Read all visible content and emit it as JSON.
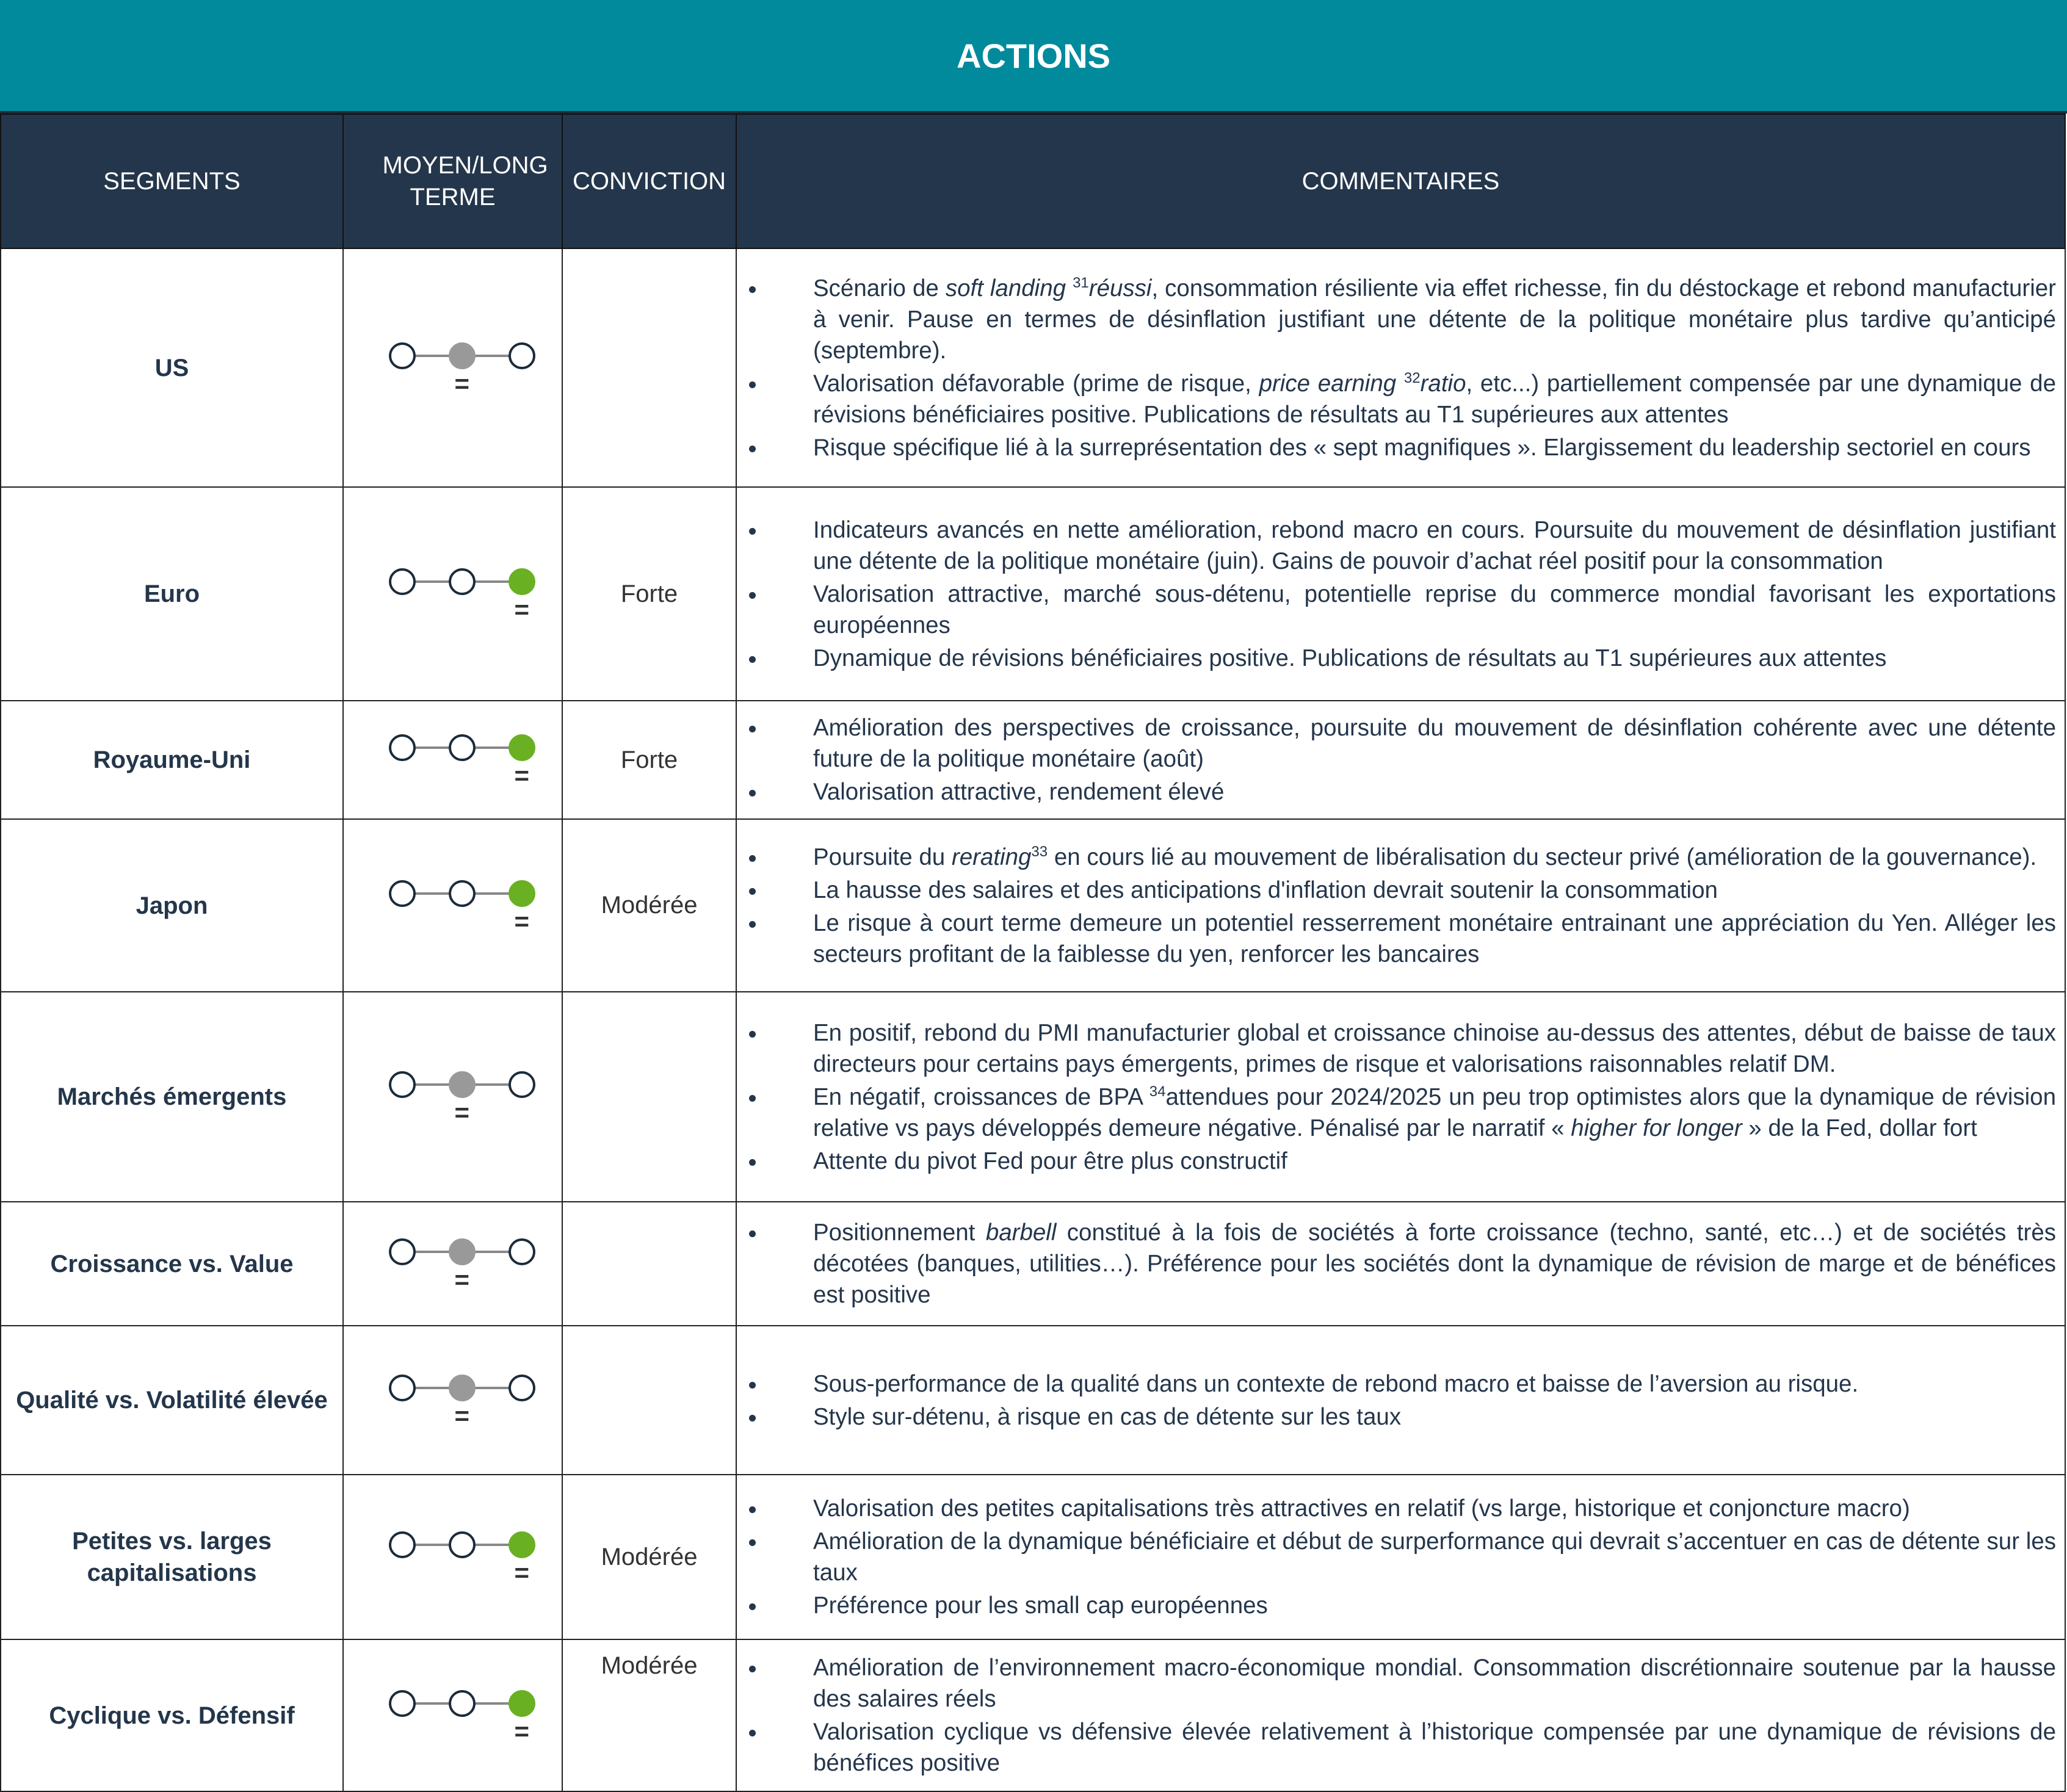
{
  "title": "ACTIONS",
  "headers": {
    "segments": "SEGMENTS",
    "term": "MOYEN/LONG TERME",
    "conviction": "CONVICTION",
    "comments": "COMMENTAIRES"
  },
  "colors": {
    "title_bg": "#008a9c",
    "header_bg": "#24364b",
    "neutral": "#999999",
    "positive": "#6ab023"
  },
  "rows": [
    {
      "segment": "US",
      "level": 2,
      "state": "neutral",
      "trend": "=",
      "conviction": "",
      "comments": [
        [
          {
            "t": "Scénario de "
          },
          {
            "t": "soft landing ",
            "i": true
          },
          {
            "t": "31",
            "sup": true
          },
          {
            "t": "réussi",
            "i": true
          },
          {
            "t": ", consommation résiliente via effet richesse, fin du déstockage et rebond manufacturier à venir. Pause en termes de désinflation justifiant une détente de la politique monétaire plus tardive qu’anticipé (septembre)."
          }
        ],
        [
          {
            "t": "Valorisation défavorable (prime de risque, "
          },
          {
            "t": "price earning ",
            "i": true
          },
          {
            "t": "32",
            "sup": true
          },
          {
            "t": "ratio",
            "i": true
          },
          {
            "t": ", etc...) partiellement compensée par une dynamique de révisions bénéficiaires positive. Publications de résultats au T1 supérieures aux attentes"
          }
        ],
        [
          {
            "t": "Risque spécifique lié à la surreprésentation des « sept magnifiques ». Elargissement du leadership sectoriel en cours"
          }
        ]
      ]
    },
    {
      "segment": "Euro",
      "level": 3,
      "state": "positive",
      "trend": "=",
      "conviction": "Forte",
      "comments": [
        [
          {
            "t": "Indicateurs avancés en nette amélioration, rebond macro en cours. Poursuite du mouvement de désinflation justifiant une détente de la politique monétaire (juin). Gains de pouvoir d’achat réel positif pour la consommation"
          }
        ],
        [
          {
            "t": "Valorisation attractive, marché sous-détenu, potentielle reprise du commerce mondial favorisant les exportations européennes"
          }
        ],
        [
          {
            "t": "Dynamique de révisions bénéficiaires positive. Publications de résultats au T1 supérieures aux attentes"
          }
        ]
      ]
    },
    {
      "segment": "Royaume-Uni",
      "level": 3,
      "state": "positive",
      "trend": "=",
      "conviction": "Forte",
      "comments": [
        [
          {
            "t": "Amélioration des perspectives de croissance, poursuite du mouvement de désinflation cohérente avec une détente future de la politique monétaire (août)"
          }
        ],
        [
          {
            "t": "Valorisation attractive, rendement élevé"
          }
        ]
      ]
    },
    {
      "segment": "Japon",
      "level": 3,
      "state": "positive",
      "trend": "=",
      "conviction": "Modérée",
      "comments": [
        [
          {
            "t": "Poursuite du "
          },
          {
            "t": "rerating",
            "i": true
          },
          {
            "t": "33",
            "sup": true
          },
          {
            "t": " en cours lié au mouvement de libéralisation du secteur privé (amélioration de la gouvernance)."
          }
        ],
        [
          {
            "t": "La hausse des salaires et des anticipations d'inflation devrait soutenir la consommation"
          }
        ],
        [
          {
            "t": "Le risque à court terme demeure un potentiel resserrement monétaire entrainant une appréciation du Yen. Alléger les secteurs profitant de la faiblesse du yen, renforcer les bancaires"
          }
        ]
      ]
    },
    {
      "segment": "Marchés émergents",
      "level": 2,
      "state": "neutral",
      "trend": "=",
      "conviction": "",
      "comments": [
        [
          {
            "t": "En positif, rebond du PMI manufacturier global et croissance chinoise au-dessus des attentes, début de baisse de taux directeurs pour certains pays émergents, primes de risque et valorisations raisonnables relatif DM."
          }
        ],
        [
          {
            "t": "En négatif, croissances de BPA "
          },
          {
            "t": "34",
            "sup": true
          },
          {
            "t": "attendues pour 2024/2025 un peu trop optimistes alors que la dynamique de révision relative vs pays développés demeure négative. Pénalisé par le narratif « "
          },
          {
            "t": "higher for longer",
            "i": true
          },
          {
            "t": " » de la Fed, dollar fort"
          }
        ],
        [
          {
            "t": "Attente du pivot Fed pour être plus constructif"
          }
        ]
      ]
    },
    {
      "segment": "Croissance vs. Value",
      "level": 2,
      "state": "neutral",
      "trend": "=",
      "conviction": "",
      "comments": [
        [
          {
            "t": "Positionnement "
          },
          {
            "t": "barbell",
            "i": true
          },
          {
            "t": " constitué à la fois de sociétés à forte croissance (techno, santé, etc…) et de sociétés très décotées (banques, utilities…).  Préférence pour les sociétés dont la dynamique de révision de marge et de bénéfices est positive"
          }
        ]
      ]
    },
    {
      "segment": "Qualité vs. Volatilité élevée",
      "level": 2,
      "state": "neutral",
      "trend": "=",
      "conviction": "",
      "comments": [
        [
          {
            "t": "Sous-performance de la qualité dans un contexte de rebond macro et baisse de l’aversion au risque."
          }
        ],
        [
          {
            "t": "Style sur-détenu,  à risque en cas de détente sur les taux"
          }
        ]
      ]
    },
    {
      "segment": "Petites vs. larges capitalisations",
      "level": 3,
      "state": "positive",
      "trend": "=",
      "conviction": "Modérée",
      "comments": [
        [
          {
            "t": "Valorisation des petites capitalisations très attractives en relatif (vs large, historique et conjoncture macro)"
          }
        ],
        [
          {
            "t": "Amélioration de la dynamique bénéficiaire et début de surperformance qui devrait s’accentuer en cas de détente sur les taux"
          }
        ],
        [
          {
            "t": "Préférence pour les small cap européennes"
          }
        ]
      ]
    },
    {
      "segment": "Cyclique vs. Défensif",
      "level": 3,
      "state": "positive",
      "trend": "=",
      "conviction": "Modérée",
      "comments": [
        [
          {
            "t": "Amélioration de l’environnement macro-économique mondial. Consommation discrétionnaire soutenue par la hausse des salaires réels"
          }
        ],
        [
          {
            "t": "Valorisation cyclique vs défensive élevée relativement à l’historique compensée par une dynamique de révisions de bénéfices positive"
          }
        ]
      ]
    }
  ]
}
